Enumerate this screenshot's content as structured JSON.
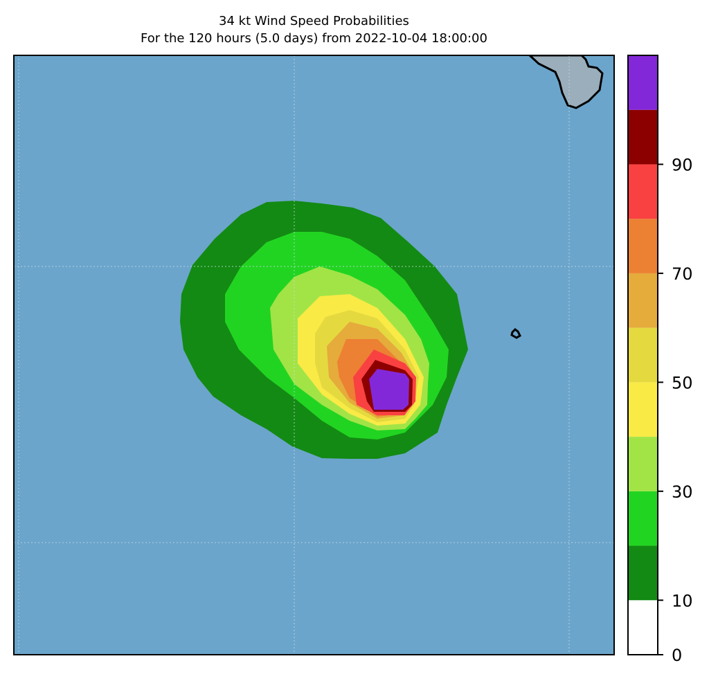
{
  "title": {
    "line1": "34 kt Wind Speed Probabilities",
    "line2": "For the 120 hours (5.0 days) from 2022-10-04 18:00:00"
  },
  "colors": {
    "ocean": "#6ba5cb",
    "land": "#9aaebb",
    "coast": "#000000",
    "grid": "#c9d9e6"
  },
  "colorbar": {
    "bins": [
      {
        "from": 0,
        "to": 10,
        "color": "#ffffff"
      },
      {
        "from": 10,
        "to": 20,
        "color": "#138a13"
      },
      {
        "from": 20,
        "to": 30,
        "color": "#22d422"
      },
      {
        "from": 30,
        "to": 40,
        "color": "#a2e446"
      },
      {
        "from": 40,
        "to": 50,
        "color": "#f9ea46"
      },
      {
        "from": 50,
        "to": 60,
        "color": "#e5d940"
      },
      {
        "from": 60,
        "to": 70,
        "color": "#e5ab3b"
      },
      {
        "from": 70,
        "to": 80,
        "color": "#ec8033"
      },
      {
        "from": 80,
        "to": 90,
        "color": "#f94141"
      },
      {
        "from": 90,
        "to": 100,
        "color": "#8d0000"
      },
      {
        "from": 100,
        "to": 110,
        "color": "#8328d9"
      }
    ],
    "tick_labels": [
      "0",
      "10",
      "30",
      "50",
      "70",
      "90"
    ]
  },
  "contour_levels": [
    {
      "level": 10,
      "color": "#138a13"
    },
    {
      "level": 20,
      "color": "#22d422"
    },
    {
      "level": 30,
      "color": "#a2e446"
    },
    {
      "level": 40,
      "color": "#f9ea46"
    },
    {
      "level": 50,
      "color": "#e5d940"
    },
    {
      "level": 60,
      "color": "#e5ab3b"
    },
    {
      "level": 70,
      "color": "#ec8033"
    },
    {
      "level": 80,
      "color": "#f94141"
    },
    {
      "level": 90,
      "color": "#8d0000"
    },
    {
      "level": 100,
      "color": "#8328d9"
    }
  ]
}
